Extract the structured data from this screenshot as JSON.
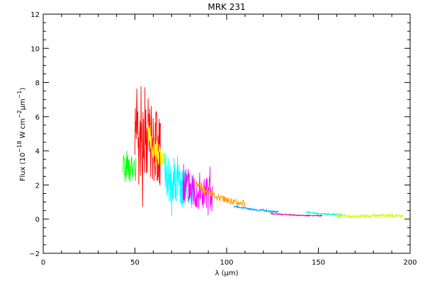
{
  "chart_data": {
    "type": "line",
    "title": "MRK 231",
    "xlabel": "λ (μm)",
    "ylabel": {
      "prefix": "Flux (10",
      "exp1": "−18",
      "mid": " W cm",
      "exp2": "−2",
      "unit": "μm",
      "exp3": "−1",
      "suffix": ")"
    },
    "xlim": [
      0,
      200
    ],
    "ylim": [
      -2,
      12
    ],
    "xticks": [
      0,
      50,
      100,
      150,
      200
    ],
    "yticks": [
      -2,
      0,
      2,
      4,
      6,
      8,
      10,
      12
    ],
    "xtick_labels": [
      "0",
      "50",
      "100",
      "150",
      "200"
    ],
    "ytick_labels": [
      "−2",
      "0",
      "2",
      "4",
      "6",
      "8",
      "10",
      "12"
    ],
    "grid": false,
    "series": [
      {
        "color": "#00ff00",
        "x": [
          43.5,
          46.0,
          48.5,
          50.5
        ],
        "y": [
          3.0,
          3.1,
          3.0,
          2.8
        ],
        "noise": 0.9,
        "seed": 1
      },
      {
        "color": "#ff0000",
        "x": [
          50.0,
          52.0,
          54.5,
          57.0,
          59.5,
          62.0,
          64.0
        ],
        "y": [
          5.5,
          5.0,
          4.8,
          4.7,
          4.4,
          4.0,
          3.8
        ],
        "noise": 2.4,
        "seed": 2
      },
      {
        "color": "#ffff00",
        "x": [
          57.0,
          59.5,
          62.0,
          64.5,
          67.0
        ],
        "y": [
          5.0,
          4.2,
          4.0,
          3.6,
          3.4
        ],
        "noise": 0.6,
        "seed": 3
      },
      {
        "color": "#00ffff",
        "x": [
          66.0,
          69.0,
          72.0,
          75.0,
          78.5,
          82.0
        ],
        "y": [
          2.8,
          2.3,
          2.0,
          1.8,
          1.7,
          1.6
        ],
        "noise": 1.3,
        "seed": 4
      },
      {
        "color": "#ff00ff",
        "x": [
          76.0,
          79.0,
          82.0,
          85.0,
          88.0,
          92.5
        ],
        "y": [
          2.1,
          1.9,
          1.8,
          1.6,
          1.4,
          1.2
        ],
        "noise": 1.2,
        "seed": 5
      },
      {
        "color": "#ff9900",
        "x": [
          83.0,
          88.0,
          93.0,
          98.0,
          104.0,
          110.0
        ],
        "y": [
          2.1,
          1.7,
          1.4,
          1.2,
          1.0,
          0.9
        ],
        "noise": 0.18,
        "seed": 6
      },
      {
        "color": "#0099ff",
        "x": [
          104.0,
          110.0,
          116.0,
          122.0,
          128.0
        ],
        "y": [
          0.75,
          0.65,
          0.55,
          0.48,
          0.42
        ],
        "noise": 0.06,
        "seed": 7
      },
      {
        "color": "#dd0099",
        "x": [
          124.0,
          132.0,
          140.0,
          146.0,
          152.0
        ],
        "y": [
          0.32,
          0.26,
          0.22,
          0.2,
          0.2
        ],
        "noise": 0.04,
        "seed": 8
      },
      {
        "color": "#00ffcc",
        "x": [
          143.0,
          148.0,
          153.0,
          158.0,
          163.0
        ],
        "y": [
          0.42,
          0.35,
          0.3,
          0.28,
          0.26
        ],
        "noise": 0.05,
        "seed": 9
      },
      {
        "color": "#ccff00",
        "x": [
          160.0,
          168.0,
          176.0,
          184.0,
          190.0,
          196.0
        ],
        "y": [
          0.2,
          0.18,
          0.18,
          0.2,
          0.22,
          0.18
        ],
        "noise": 0.09,
        "seed": 10
      }
    ]
  }
}
